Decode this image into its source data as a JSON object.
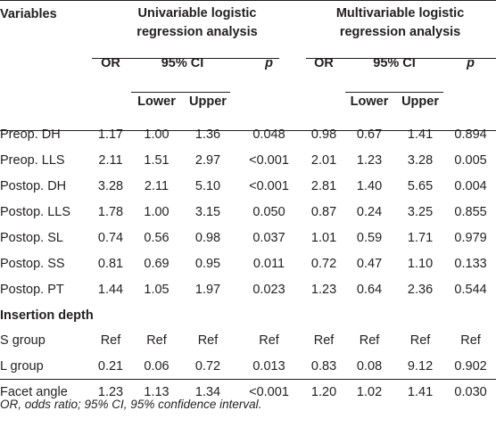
{
  "table": {
    "header": {
      "variables": "Variables",
      "uni_line1": "Univariable logistic",
      "uni_line2": "regression analysis",
      "multi_line1": "Multivariable logistic",
      "multi_line2": "regression analysis",
      "or": "OR",
      "ci": "95% CI",
      "p": "p",
      "lower": "Lower",
      "upper": "Upper"
    },
    "rows": [
      {
        "label": "Preop. DH",
        "u_or": "1.17",
        "u_lower": "1.00",
        "u_upper": "1.36",
        "u_p": "0.048",
        "m_or": "0.98",
        "m_lower": "0.67",
        "m_upper": "1.41",
        "m_p": "0.894"
      },
      {
        "label": "Preop. LLS",
        "u_or": "2.11",
        "u_lower": "1.51",
        "u_upper": "2.97",
        "u_p": "<0.001",
        "m_or": "2.01",
        "m_lower": "1.23",
        "m_upper": "3.28",
        "m_p": "0.005"
      },
      {
        "label": "Postop. DH",
        "u_or": "3.28",
        "u_lower": "2.11",
        "u_upper": "5.10",
        "u_p": "<0.001",
        "m_or": "2.81",
        "m_lower": "1.40",
        "m_upper": "5.65",
        "m_p": "0.004"
      },
      {
        "label": "Postop. LLS",
        "u_or": "1.78",
        "u_lower": "1.00",
        "u_upper": "3.15",
        "u_p": "0.050",
        "m_or": "0.87",
        "m_lower": "0.24",
        "m_upper": "3.25",
        "m_p": "0.855"
      },
      {
        "label": "Postop. SL",
        "u_or": "0.74",
        "u_lower": "0.56",
        "u_upper": "0.98",
        "u_p": "0.037",
        "m_or": "1.01",
        "m_lower": "0.59",
        "m_upper": "1.71",
        "m_p": "0.979"
      },
      {
        "label": "Postop. SS",
        "u_or": "0.81",
        "u_lower": "0.69",
        "u_upper": "0.95",
        "u_p": "0.011",
        "m_or": "0.72",
        "m_lower": "0.47",
        "m_upper": "1.10",
        "m_p": "0.133"
      },
      {
        "label": "Postop. PT",
        "u_or": "1.44",
        "u_lower": "1.05",
        "u_upper": "1.97",
        "u_p": "0.023",
        "m_or": "1.23",
        "m_lower": "0.64",
        "m_upper": "2.36",
        "m_p": "0.544"
      }
    ],
    "section_label": "Insertion depth",
    "rows2": [
      {
        "label": "S group",
        "u_or": "Ref",
        "u_lower": "Ref",
        "u_upper": "Ref",
        "u_p": "Ref",
        "m_or": "Ref",
        "m_lower": "Ref",
        "m_upper": "Ref",
        "m_p": "Ref"
      },
      {
        "label": "L group",
        "u_or": "0.21",
        "u_lower": "0.06",
        "u_upper": "0.72",
        "u_p": "0.013",
        "m_or": "0.83",
        "m_lower": "0.08",
        "m_upper": "9.12",
        "m_p": "0.902"
      },
      {
        "label": "Facet angle",
        "u_or": "1.23",
        "u_lower": "1.13",
        "u_upper": "1.34",
        "u_p": "<0.001",
        "m_or": "1.20",
        "m_lower": "1.02",
        "m_upper": "1.41",
        "m_p": "0.030"
      }
    ]
  },
  "footnote": "OR, odds ratio; 95% CI, 95% confidence interval."
}
